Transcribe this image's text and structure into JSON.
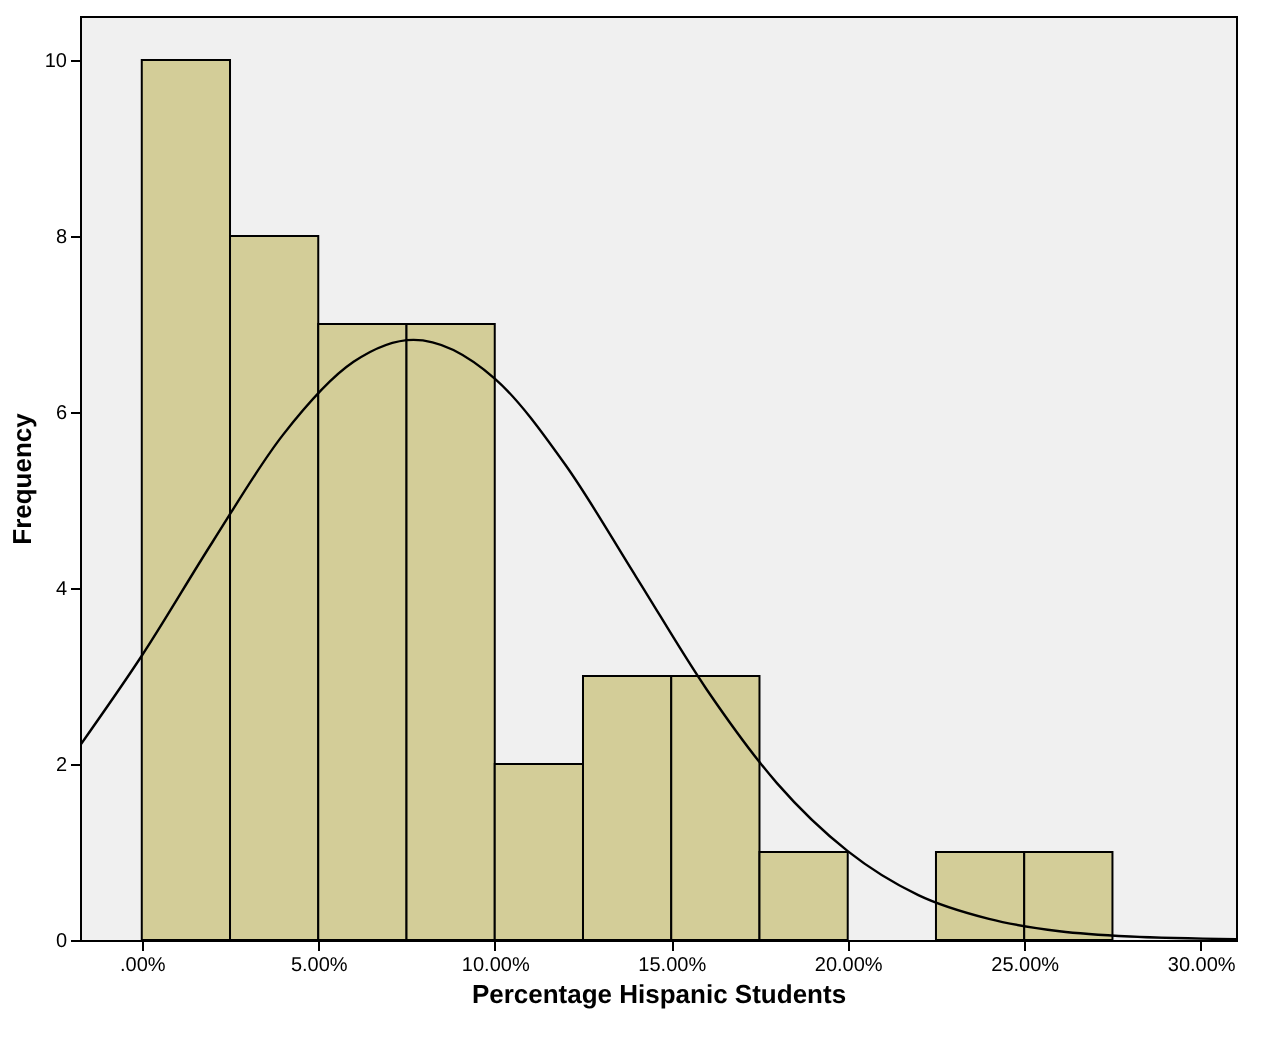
{
  "chart_data": {
    "type": "histogram",
    "xlabel": "Percentage Hispanic Students",
    "ylabel": "Frequency",
    "color": "#d3cd98",
    "bins": [
      0,
      2.5,
      5,
      7.5,
      10,
      12.5,
      15,
      17.5,
      20,
      22.5,
      25,
      27.5
    ],
    "values": [
      10,
      8,
      7,
      7,
      2,
      3,
      3,
      1,
      0,
      1,
      1
    ],
    "series": [
      {
        "type": "line",
        "color": "#000000",
        "x": [
          -1.75,
          0,
          2,
          4,
          6,
          7.7,
          10,
          12,
          14,
          16,
          18,
          20,
          22,
          24,
          26,
          28,
          31
        ],
        "values": [
          2.21,
          3.23,
          4.52,
          5.74,
          6.57,
          6.82,
          6.38,
          5.4,
          4.13,
          2.85,
          1.78,
          1.01,
          0.51,
          0.24,
          0.1,
          0.04,
          0.01
        ]
      }
    ],
    "xlim": [
      -1.75,
      31
    ],
    "xticks": [
      {
        "value": 0,
        "label": ".00%"
      },
      {
        "value": 5,
        "label": "5.00%"
      },
      {
        "value": 10,
        "label": "10.00%"
      },
      {
        "value": 15,
        "label": "15.00%"
      },
      {
        "value": 20,
        "label": "20.00%"
      },
      {
        "value": 25,
        "label": "25.00%"
      },
      {
        "value": 30,
        "label": "30.00%"
      }
    ],
    "ylim": [
      0,
      10.5
    ],
    "yticks": [
      0,
      2,
      4,
      6,
      8,
      10
    ]
  }
}
